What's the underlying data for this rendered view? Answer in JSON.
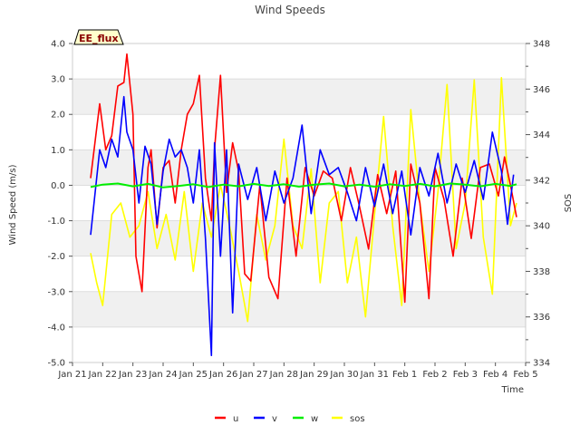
{
  "chart_data": {
    "type": "line",
    "title": "Wind Speeds",
    "site_label": "EE_flux",
    "xlabel": "Time",
    "ylabel": "Wind Speed (m/s)",
    "y2label": "SOS",
    "x_ticks": [
      "Jan 21",
      "Jan 22",
      "Jan 23",
      "Jan 24",
      "Jan 25",
      "Jan 26",
      "Jan 27",
      "Jan 28",
      "Jan 29",
      "Jan 30",
      "Jan 31",
      "Feb 1",
      "Feb 2",
      "Feb 3",
      "Feb 4",
      "Feb 5"
    ],
    "xlim": [
      0,
      15
    ],
    "ylim": [
      -5.0,
      4.0
    ],
    "y_ticks": [
      "4.0",
      "3.0",
      "2.0",
      "1.0",
      "0.0",
      "-1.0",
      "-2.0",
      "-3.0",
      "-4.0",
      "-5.0"
    ],
    "y2lim": [
      334,
      348
    ],
    "y2_ticks": [
      "348",
      "346",
      "344",
      "342",
      "340",
      "338",
      "336",
      "334"
    ],
    "colors": {
      "u": "#ff0000",
      "v": "#0000ff",
      "w": "#00ee00",
      "sos": "#ffff00"
    },
    "legend": [
      "u",
      "v",
      "w",
      "sos"
    ],
    "series": [
      {
        "name": "u",
        "axis": "left",
        "x": [
          0.6,
          0.9,
          1.1,
          1.3,
          1.5,
          1.7,
          1.8,
          2.0,
          2.1,
          2.3,
          2.5,
          2.6,
          2.8,
          3.0,
          3.2,
          3.4,
          3.6,
          3.8,
          4.0,
          4.2,
          4.4,
          4.6,
          4.7,
          4.9,
          5.1,
          5.3,
          5.5,
          5.7,
          5.9,
          6.2,
          6.5,
          6.8,
          7.1,
          7.4,
          7.7,
          8.0,
          8.3,
          8.6,
          8.9,
          9.2,
          9.5,
          9.8,
          10.1,
          10.4,
          10.7,
          11.0,
          11.2,
          11.5,
          11.8,
          12.0,
          12.3,
          12.6,
          12.9,
          13.2,
          13.5,
          13.8,
          14.1,
          14.3,
          14.5,
          14.7
        ],
        "y": [
          0.2,
          2.3,
          1.0,
          1.4,
          2.8,
          2.9,
          3.7,
          2.0,
          -2.0,
          -3.0,
          0.5,
          1.0,
          -1.2,
          0.5,
          0.7,
          -0.5,
          1.0,
          2.0,
          2.3,
          3.1,
          0.2,
          -1.0,
          1.0,
          3.1,
          -0.2,
          1.2,
          0.4,
          -2.5,
          -2.7,
          0.0,
          -2.6,
          -3.2,
          0.2,
          -2.0,
          0.5,
          -0.3,
          0.4,
          0.2,
          -1.0,
          0.5,
          -0.6,
          -1.8,
          0.3,
          -0.8,
          0.4,
          -3.3,
          0.6,
          -0.5,
          -3.2,
          0.5,
          -0.4,
          -2.0,
          0.2,
          -1.5,
          0.5,
          0.6,
          -0.3,
          0.8,
          0.0,
          -0.9
        ]
      },
      {
        "name": "v",
        "axis": "left",
        "x": [
          0.6,
          0.9,
          1.1,
          1.3,
          1.5,
          1.7,
          1.8,
          2.0,
          2.2,
          2.4,
          2.6,
          2.8,
          3.0,
          3.2,
          3.4,
          3.6,
          3.8,
          4.0,
          4.2,
          4.4,
          4.6,
          4.7,
          4.9,
          5.1,
          5.3,
          5.5,
          5.8,
          6.1,
          6.4,
          6.7,
          7.0,
          7.3,
          7.6,
          7.9,
          8.2,
          8.5,
          8.8,
          9.1,
          9.4,
          9.7,
          10.0,
          10.3,
          10.6,
          10.9,
          11.2,
          11.5,
          11.8,
          12.1,
          12.4,
          12.7,
          13.0,
          13.3,
          13.6,
          13.9,
          14.2,
          14.4,
          14.6
        ],
        "y": [
          -1.4,
          1.0,
          0.5,
          1.3,
          0.8,
          2.5,
          1.5,
          1.0,
          -0.5,
          1.1,
          0.6,
          -1.1,
          0.4,
          1.3,
          0.8,
          1.0,
          0.5,
          -0.5,
          1.0,
          -1.5,
          -4.8,
          1.2,
          -2.0,
          1.0,
          -3.6,
          0.6,
          -0.4,
          0.5,
          -1.0,
          0.4,
          -0.5,
          0.2,
          1.7,
          -0.8,
          1.0,
          0.3,
          0.5,
          -0.2,
          -1.0,
          0.5,
          -0.6,
          0.6,
          -0.8,
          0.4,
          -1.4,
          0.5,
          -0.3,
          0.9,
          -0.5,
          0.6,
          -0.2,
          0.7,
          -0.4,
          1.5,
          0.4,
          -1.1,
          0.3
        ]
      },
      {
        "name": "w",
        "axis": "left",
        "x": [
          0.6,
          1.0,
          1.5,
          2.0,
          2.5,
          3.0,
          3.5,
          4.0,
          4.5,
          5.0,
          5.5,
          6.0,
          6.5,
          7.0,
          7.5,
          8.0,
          8.5,
          9.0,
          9.5,
          10.0,
          10.5,
          11.0,
          11.5,
          12.0,
          12.5,
          13.0,
          13.5,
          14.0,
          14.5,
          14.7
        ],
        "y": [
          -0.05,
          0.02,
          0.05,
          -0.03,
          0.04,
          -0.06,
          -0.02,
          0.03,
          -0.05,
          0.02,
          -0.03,
          0.04,
          -0.02,
          0.03,
          -0.04,
          0.02,
          0.05,
          -0.03,
          0.02,
          -0.04,
          0.03,
          -0.02,
          0.04,
          -0.03,
          0.05,
          0.02,
          -0.03,
          0.04,
          -0.02,
          0.03
        ]
      },
      {
        "name": "sos",
        "axis": "right",
        "x": [
          0.6,
          0.8,
          1.0,
          1.3,
          1.6,
          1.9,
          2.2,
          2.5,
          2.8,
          3.1,
          3.4,
          3.7,
          4.0,
          4.3,
          4.6,
          4.9,
          5.2,
          5.5,
          5.8,
          6.1,
          6.4,
          6.7,
          7.0,
          7.3,
          7.6,
          7.9,
          8.2,
          8.5,
          8.8,
          9.1,
          9.4,
          9.7,
          10.0,
          10.3,
          10.6,
          10.9,
          11.2,
          11.5,
          11.8,
          12.1,
          12.4,
          12.7,
          13.0,
          13.3,
          13.6,
          13.9,
          14.2,
          14.5,
          14.7
        ],
        "y": [
          338.8,
          337.5,
          336.5,
          340.5,
          341.0,
          339.5,
          340.0,
          341.5,
          339.0,
          340.5,
          338.5,
          341.5,
          338.0,
          341.0,
          339.5,
          341.8,
          340.0,
          338.0,
          335.8,
          340.5,
          338.5,
          340.0,
          343.8,
          340.0,
          339.0,
          342.5,
          337.5,
          341.0,
          341.5,
          337.5,
          339.5,
          336.0,
          340.5,
          344.8,
          340.0,
          336.5,
          345.1,
          341.0,
          338.0,
          341.5,
          346.2,
          339.0,
          341.0,
          346.4,
          339.5,
          337.0,
          346.5,
          340.0,
          341.0
        ]
      }
    ]
  }
}
